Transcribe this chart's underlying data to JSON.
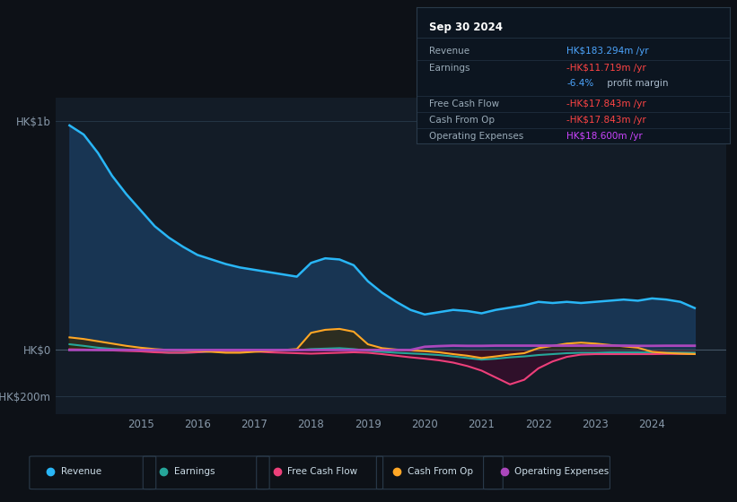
{
  "background_color": "#0d1117",
  "plot_bg_color": "#131c27",
  "grid_color": "#253545",
  "yticks_labels": [
    "HK$1b",
    "HK$0",
    "-HK$200m"
  ],
  "yticks_values": [
    1000,
    0,
    -200
  ],
  "xlim": [
    2013.5,
    2025.3
  ],
  "ylim": [
    -280,
    1100
  ],
  "years": [
    2013.75,
    2014.0,
    2014.25,
    2014.5,
    2014.75,
    2015.0,
    2015.25,
    2015.5,
    2015.75,
    2016.0,
    2016.25,
    2016.5,
    2016.75,
    2017.0,
    2017.25,
    2017.5,
    2017.75,
    2018.0,
    2018.25,
    2018.5,
    2018.75,
    2019.0,
    2019.25,
    2019.5,
    2019.75,
    2020.0,
    2020.25,
    2020.5,
    2020.75,
    2021.0,
    2021.25,
    2021.5,
    2021.75,
    2022.0,
    2022.25,
    2022.5,
    2022.75,
    2023.0,
    2023.25,
    2023.5,
    2023.75,
    2024.0,
    2024.25,
    2024.5,
    2024.75
  ],
  "revenue": [
    980,
    940,
    860,
    760,
    680,
    610,
    540,
    490,
    450,
    415,
    395,
    375,
    360,
    350,
    340,
    330,
    320,
    380,
    400,
    395,
    370,
    300,
    250,
    210,
    175,
    155,
    165,
    175,
    170,
    160,
    175,
    185,
    195,
    210,
    205,
    210,
    205,
    210,
    215,
    220,
    215,
    225,
    220,
    210,
    183
  ],
  "earnings": [
    25,
    18,
    10,
    5,
    2,
    -2,
    -8,
    -12,
    -12,
    -10,
    -6,
    -4,
    -4,
    -4,
    -2,
    -1,
    -1,
    4,
    6,
    8,
    4,
    -3,
    -8,
    -12,
    -15,
    -18,
    -22,
    -28,
    -35,
    -42,
    -38,
    -32,
    -28,
    -22,
    -18,
    -14,
    -12,
    -12,
    -10,
    -10,
    -10,
    -11,
    -11,
    -11,
    -11.719
  ],
  "free_cash_flow": [
    3,
    2,
    0,
    -2,
    -4,
    -6,
    -10,
    -12,
    -12,
    -10,
    -6,
    -4,
    -4,
    -6,
    -10,
    -12,
    -14,
    -16,
    -14,
    -12,
    -10,
    -12,
    -18,
    -25,
    -32,
    -38,
    -45,
    -55,
    -70,
    -90,
    -120,
    -150,
    -130,
    -80,
    -50,
    -30,
    -20,
    -18,
    -18,
    -18,
    -18,
    -18,
    -17,
    -17,
    -17.843
  ],
  "cash_from_op": [
    55,
    48,
    38,
    28,
    18,
    10,
    4,
    0,
    -2,
    -4,
    -8,
    -12,
    -12,
    -8,
    -4,
    0,
    4,
    75,
    88,
    92,
    80,
    25,
    8,
    2,
    -2,
    -5,
    -10,
    -18,
    -25,
    -35,
    -28,
    -20,
    -14,
    8,
    18,
    28,
    32,
    28,
    22,
    16,
    10,
    -8,
    -13,
    -16,
    -17.843
  ],
  "operating_expenses": [
    0,
    0,
    0,
    0,
    0,
    0,
    0,
    0,
    0,
    0,
    0,
    0,
    0,
    0,
    0,
    0,
    0,
    0,
    0,
    0,
    0,
    0,
    0,
    0,
    0,
    14,
    17,
    19,
    18,
    18,
    19,
    19,
    19,
    19,
    19,
    19,
    19,
    19,
    19,
    19,
    18,
    18,
    18.6,
    18.6,
    18.6
  ],
  "revenue_color": "#2196f3",
  "revenue_line_color": "#29b6f6",
  "earnings_color": "#26a69a",
  "free_cash_flow_color": "#ec407a",
  "cash_from_op_color": "#ffa726",
  "operating_expenses_color": "#ab47bc",
  "revenue_fill": "#1a3a5c",
  "earnings_fill_neg": "#0d3028",
  "cfop_fill_pos": "#3a2800",
  "cfop_fill_neg": "#2a1500",
  "fcf_fill_neg": "#3a0020",
  "xtick_years": [
    2015,
    2016,
    2017,
    2018,
    2019,
    2020,
    2021,
    2022,
    2023,
    2024
  ],
  "legend_labels": [
    "Revenue",
    "Earnings",
    "Free Cash Flow",
    "Cash From Op",
    "Operating Expenses"
  ],
  "legend_colors": [
    "#29b6f6",
    "#26a69a",
    "#ec407a",
    "#ffa726",
    "#ab47bc"
  ],
  "info_box": {
    "title": "Sep 30 2024",
    "rows": [
      {
        "label": "Revenue",
        "value": "HK$183.294m /yr",
        "value_color": "#4da6ff"
      },
      {
        "label": "Earnings",
        "value": "-HK$11.719m /yr",
        "value_color": "#ff4444"
      },
      {
        "label": "",
        "prefix": "-6.4%",
        "prefix_color": "#4da6ff",
        "suffix": " profit margin",
        "suffix_color": "#aabbcc"
      },
      {
        "label": "Free Cash Flow",
        "value": "-HK$17.843m /yr",
        "value_color": "#ff4444"
      },
      {
        "label": "Cash From Op",
        "value": "-HK$17.843m /yr",
        "value_color": "#ff4444"
      },
      {
        "label": "Operating Expenses",
        "value": "HK$18.600m /yr",
        "value_color": "#cc44ff"
      }
    ]
  }
}
